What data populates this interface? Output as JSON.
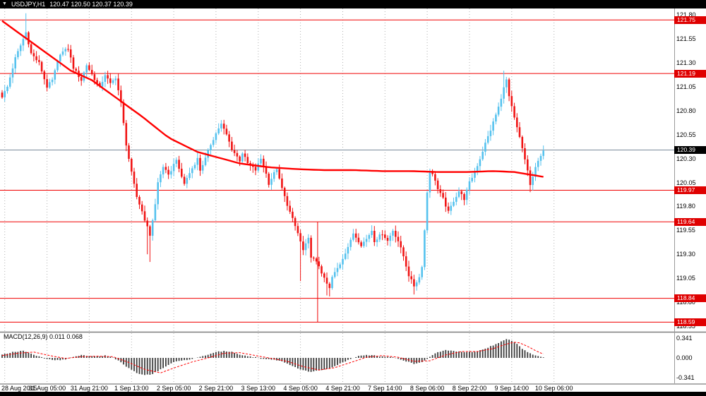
{
  "title_bar": {
    "symbol": "USDJPY,H1",
    "ohlc": "120.47 120.50 120.37 120.39"
  },
  "colors": {
    "background": "#ffffff",
    "titlebar_bg": "#000000",
    "titlebar_text": "#ffffff",
    "bull": "#55c2ee",
    "bear": "#f01414",
    "ma": "#ff0000",
    "hline": "#f00000",
    "tag_bg": "#df0000",
    "bid_line": "#778899",
    "grid": "#b0b0b0",
    "macd_hist": "#3c3c3c",
    "macd_signal": "#ff0000",
    "separator": "#7d7d7d"
  },
  "chart_data": {
    "type": "candlestick",
    "symbol": "USDJPY",
    "timeframe": "H1",
    "current_bar": {
      "open": 120.47,
      "high": 120.5,
      "low": 120.37,
      "close": 120.39
    },
    "candle_count": 206,
    "y_axis": {
      "top_price": 121.87,
      "bottom_price": 118.49
    },
    "price_axis": [
      "121.80",
      "121.55",
      "121.30",
      "121.05",
      "120.80",
      "120.55",
      "120.30",
      "120.05",
      "119.80",
      "119.55",
      "119.30",
      "119.05",
      "118.80",
      "118.55"
    ],
    "hlines": [
      {
        "price": 121.75,
        "label": "121.75"
      },
      {
        "price": 121.19,
        "label": "121.19"
      },
      {
        "price": 119.97,
        "label": "119.97"
      },
      {
        "price": 119.64,
        "label": "119.64"
      },
      {
        "price": 118.84,
        "label": "118.84"
      },
      {
        "price": 118.59,
        "label": "118.59"
      }
    ],
    "bid_line": {
      "price": 120.39,
      "label": "120.39"
    },
    "vline": {
      "i": 119.5,
      "from": 119.64,
      "to": 118.59
    },
    "time_axis": [
      {
        "i": 1,
        "label": "28 Aug 2015"
      },
      {
        "i": 17,
        "label": "31 Aug 05:00"
      },
      {
        "i": 33,
        "label": "31 Aug 21:00"
      },
      {
        "i": 49,
        "label": "1 Sep 13:00"
      },
      {
        "i": 65,
        "label": "2 Sep 05:00"
      },
      {
        "i": 81,
        "label": "2 Sep 21:00"
      },
      {
        "i": 97,
        "label": "3 Sep 13:00"
      },
      {
        "i": 113,
        "label": "4 Sep 05:00"
      },
      {
        "i": 129,
        "label": "4 Sep 21:00"
      },
      {
        "i": 145,
        "label": "7 Sep 14:00"
      },
      {
        "i": 161,
        "label": "8 Sep 06:00"
      },
      {
        "i": 177,
        "label": "8 Sep 22:00"
      },
      {
        "i": 193,
        "label": "9 Sep 14:00"
      },
      {
        "i": 209,
        "label": "10 Sep 06:00"
      }
    ],
    "candles_path": [
      [
        0,
        120.95
      ],
      [
        2,
        121.05
      ],
      [
        5,
        121.35
      ],
      [
        8,
        121.55
      ],
      [
        9,
        121.62
      ],
      [
        11,
        121.4
      ],
      [
        14,
        121.3
      ],
      [
        17,
        121.05
      ],
      [
        19,
        121.12
      ],
      [
        22,
        121.4
      ],
      [
        25,
        121.45
      ],
      [
        27,
        121.25
      ],
      [
        30,
        121.12
      ],
      [
        32,
        121.28
      ],
      [
        34,
        121.18
      ],
      [
        37,
        121.04
      ],
      [
        39,
        121.18
      ],
      [
        41,
        121.08
      ],
      [
        43,
        121.15
      ],
      [
        45,
        120.88
      ],
      [
        47,
        120.45
      ],
      [
        49,
        120.15
      ],
      [
        51,
        119.9
      ],
      [
        53,
        119.75
      ],
      [
        55,
        119.58
      ],
      [
        56,
        119.5
      ],
      [
        58,
        119.82
      ],
      [
        59,
        120.05
      ],
      [
        61,
        120.22
      ],
      [
        63,
        120.12
      ],
      [
        66,
        120.3
      ],
      [
        67,
        120.18
      ],
      [
        69,
        120.04
      ],
      [
        71,
        120.15
      ],
      [
        74,
        120.3
      ],
      [
        75,
        120.18
      ],
      [
        77,
        120.3
      ],
      [
        79,
        120.45
      ],
      [
        82,
        120.62
      ],
      [
        83,
        120.66
      ],
      [
        85,
        120.55
      ],
      [
        87,
        120.4
      ],
      [
        90,
        120.28
      ],
      [
        91,
        120.36
      ],
      [
        93,
        120.25
      ],
      [
        96,
        120.18
      ],
      [
        98,
        120.3
      ],
      [
        100,
        120.14
      ],
      [
        101,
        120.04
      ],
      [
        104,
        120.2
      ],
      [
        105,
        120.08
      ],
      [
        107,
        119.9
      ],
      [
        109,
        119.74
      ],
      [
        112,
        119.52
      ],
      [
        114,
        119.34
      ],
      [
        116,
        119.46
      ],
      [
        117,
        119.28
      ],
      [
        120,
        119.18
      ],
      [
        122,
        119.04
      ],
      [
        124,
        118.94
      ],
      [
        125,
        119.06
      ],
      [
        128,
        119.2
      ],
      [
        130,
        119.32
      ],
      [
        132,
        119.44
      ],
      [
        133,
        119.52
      ],
      [
        136,
        119.4
      ],
      [
        138,
        119.46
      ],
      [
        140,
        119.55
      ],
      [
        141,
        119.44
      ],
      [
        144,
        119.52
      ],
      [
        146,
        119.44
      ],
      [
        148,
        119.55
      ],
      [
        150,
        119.44
      ],
      [
        152,
        119.28
      ],
      [
        154,
        119.08
      ],
      [
        156,
        118.97
      ],
      [
        158,
        119.06
      ],
      [
        159,
        119.18
      ],
      [
        160,
        119.55
      ],
      [
        161,
        119.95
      ],
      [
        162,
        120.18
      ],
      [
        164,
        120.08
      ],
      [
        165,
        119.98
      ],
      [
        167,
        119.88
      ],
      [
        169,
        119.74
      ],
      [
        171,
        119.86
      ],
      [
        173,
        119.96
      ],
      [
        175,
        119.88
      ],
      [
        177,
        120.05
      ],
      [
        179,
        120.16
      ],
      [
        181,
        120.3
      ],
      [
        183,
        120.46
      ],
      [
        185,
        120.6
      ],
      [
        187,
        120.76
      ],
      [
        189,
        120.92
      ],
      [
        190,
        121.06
      ],
      [
        191,
        121.12
      ],
      [
        192,
        120.95
      ],
      [
        194,
        120.72
      ],
      [
        196,
        120.52
      ],
      [
        197,
        120.4
      ],
      [
        199,
        120.18
      ],
      [
        200,
        120.02
      ],
      [
        202,
        120.2
      ],
      [
        204,
        120.34
      ],
      [
        205,
        120.39
      ]
    ],
    "spikes": [
      {
        "i": 9,
        "high": 121.82
      },
      {
        "i": 55,
        "low": 119.3
      },
      {
        "i": 56,
        "low": 119.22
      },
      {
        "i": 113,
        "low": 119.02
      },
      {
        "i": 123,
        "low": 118.87
      },
      {
        "i": 124,
        "low": 118.86
      },
      {
        "i": 156,
        "low": 118.88
      },
      {
        "i": 190,
        "high": 121.22
      },
      {
        "i": 200,
        "low": 119.95
      }
    ],
    "ma_path": [
      [
        0,
        121.74
      ],
      [
        13,
        121.48
      ],
      [
        26,
        121.22
      ],
      [
        34,
        121.12
      ],
      [
        42,
        120.96
      ],
      [
        53,
        120.74
      ],
      [
        63,
        120.52
      ],
      [
        74,
        120.37
      ],
      [
        82,
        120.31
      ],
      [
        90,
        120.25
      ],
      [
        101,
        120.21
      ],
      [
        112,
        120.19
      ],
      [
        122,
        120.18
      ],
      [
        133,
        120.18
      ],
      [
        144,
        120.17
      ],
      [
        155,
        120.17
      ],
      [
        165,
        120.16
      ],
      [
        176,
        120.16
      ],
      [
        186,
        120.17
      ],
      [
        194,
        120.16
      ],
      [
        205,
        120.11
      ]
    ],
    "macd": {
      "label": "MACD(12,26,9) 0.011 0.068",
      "main_value": 0.011,
      "signal_value": 0.068,
      "axis": {
        "top_value": 0.427,
        "bottom_value": -0.44,
        "ticks": [
          {
            "v": 0.341,
            "label": "0.341"
          },
          {
            "v": 0.0,
            "label": "0.000"
          },
          {
            "v": -0.341,
            "label": "-0.341"
          }
        ]
      },
      "hist_path": [
        [
          0,
          0.06
        ],
        [
          4,
          0.1
        ],
        [
          8,
          0.12
        ],
        [
          11,
          0.08
        ],
        [
          14,
          0.02
        ],
        [
          17,
          -0.02
        ],
        [
          20,
          -0.04
        ],
        [
          24,
          -0.03
        ],
        [
          27,
          0.02
        ],
        [
          30,
          0.05
        ],
        [
          33,
          0.03
        ],
        [
          36,
          0.02
        ],
        [
          39,
          0.04
        ],
        [
          42,
          0.01
        ],
        [
          45,
          -0.08
        ],
        [
          48,
          -0.18
        ],
        [
          51,
          -0.26
        ],
        [
          54,
          -0.3
        ],
        [
          57,
          -0.28
        ],
        [
          60,
          -0.2
        ],
        [
          63,
          -0.12
        ],
        [
          66,
          -0.06
        ],
        [
          69,
          -0.04
        ],
        [
          72,
          -0.02
        ],
        [
          75,
          0.02
        ],
        [
          78,
          0.06
        ],
        [
          81,
          0.1
        ],
        [
          84,
          0.12
        ],
        [
          87,
          0.1
        ],
        [
          90,
          0.06
        ],
        [
          93,
          0.03
        ],
        [
          96,
          0.01
        ],
        [
          99,
          -0.02
        ],
        [
          102,
          -0.03
        ],
        [
          105,
          -0.05
        ],
        [
          108,
          -0.1
        ],
        [
          111,
          -0.16
        ],
        [
          114,
          -0.22
        ],
        [
          117,
          -0.24
        ],
        [
          120,
          -0.22
        ],
        [
          123,
          -0.2
        ],
        [
          126,
          -0.14
        ],
        [
          129,
          -0.08
        ],
        [
          132,
          -0.02
        ],
        [
          135,
          0.03
        ],
        [
          138,
          0.05
        ],
        [
          141,
          0.04
        ],
        [
          144,
          0.02
        ],
        [
          147,
          0.01
        ],
        [
          150,
          -0.01
        ],
        [
          153,
          -0.06
        ],
        [
          156,
          -0.1
        ],
        [
          159,
          -0.08
        ],
        [
          162,
          0.02
        ],
        [
          165,
          0.1
        ],
        [
          168,
          0.13
        ],
        [
          171,
          0.12
        ],
        [
          174,
          0.1
        ],
        [
          177,
          0.1
        ],
        [
          180,
          0.12
        ],
        [
          183,
          0.16
        ],
        [
          186,
          0.22
        ],
        [
          189,
          0.28
        ],
        [
          191,
          0.32
        ],
        [
          193,
          0.3
        ],
        [
          195,
          0.24
        ],
        [
          197,
          0.16
        ],
        [
          199,
          0.1
        ],
        [
          201,
          0.06
        ],
        [
          203,
          0.03
        ],
        [
          205,
          0.011
        ]
      ],
      "signal_path": [
        [
          0,
          0.04
        ],
        [
          6,
          0.08
        ],
        [
          12,
          0.1
        ],
        [
          18,
          0.04
        ],
        [
          24,
          -0.01
        ],
        [
          30,
          0.02
        ],
        [
          36,
          0.03
        ],
        [
          42,
          0.02
        ],
        [
          48,
          -0.08
        ],
        [
          54,
          -0.2
        ],
        [
          60,
          -0.26
        ],
        [
          66,
          -0.16
        ],
        [
          72,
          -0.07
        ],
        [
          78,
          0.0
        ],
        [
          84,
          0.08
        ],
        [
          90,
          0.09
        ],
        [
          96,
          0.04
        ],
        [
          102,
          -0.01
        ],
        [
          108,
          -0.06
        ],
        [
          114,
          -0.15
        ],
        [
          120,
          -0.21
        ],
        [
          126,
          -0.17
        ],
        [
          132,
          -0.08
        ],
        [
          138,
          0.01
        ],
        [
          144,
          0.04
        ],
        [
          150,
          0.01
        ],
        [
          156,
          -0.06
        ],
        [
          162,
          -0.05
        ],
        [
          168,
          0.05
        ],
        [
          174,
          0.11
        ],
        [
          180,
          0.11
        ],
        [
          186,
          0.16
        ],
        [
          191,
          0.24
        ],
        [
          195,
          0.28
        ],
        [
          199,
          0.2
        ],
        [
          203,
          0.1
        ],
        [
          205,
          0.068
        ]
      ]
    }
  }
}
